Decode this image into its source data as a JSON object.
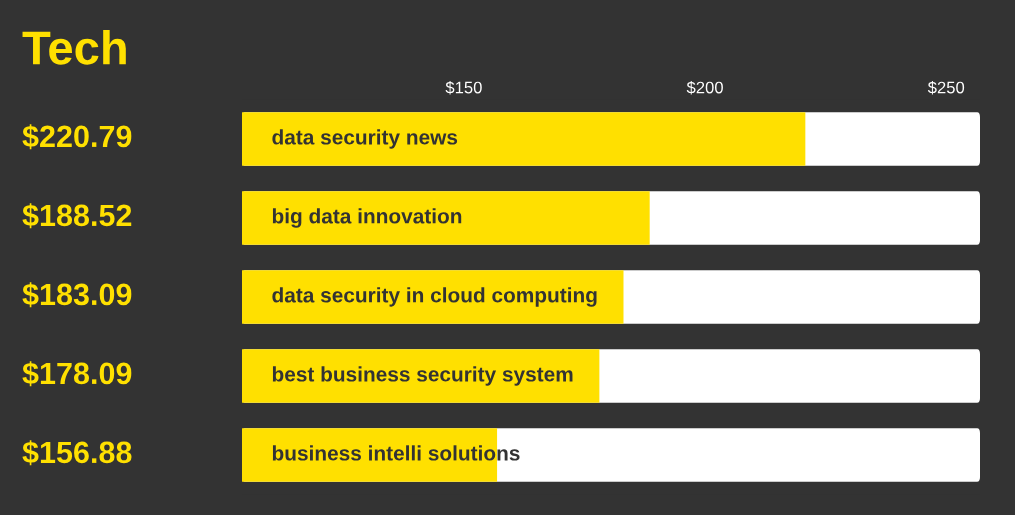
{
  "chart_data": {
    "type": "bar",
    "orientation": "horizontal",
    "title": "Tech",
    "categories": [
      "data security news",
      "big data innovation",
      "data security in cloud computing",
      "best business security system",
      "business intelli solutions"
    ],
    "values": [
      220.79,
      188.52,
      183.09,
      178.09,
      156.88
    ],
    "value_labels": [
      "$220.79",
      "$188.52",
      "$183.09",
      "$178.09",
      "$156.88"
    ],
    "color": "#ffe000",
    "xlim": [
      104,
      257
    ],
    "xticks": [
      {
        "value": 150,
        "label": "$150"
      },
      {
        "value": 200,
        "label": "$200"
      },
      {
        "value": 250,
        "label": "$250"
      }
    ],
    "grid": false,
    "legend": false
  }
}
